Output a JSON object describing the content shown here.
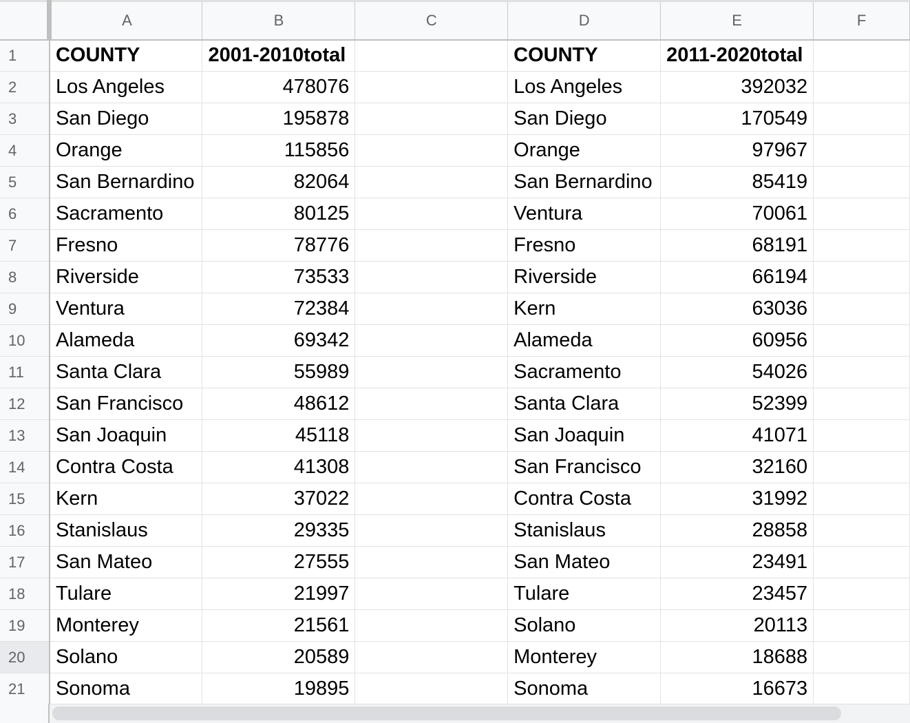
{
  "columns": [
    "A",
    "B",
    "C",
    "D",
    "E",
    "F"
  ],
  "row_numbers": [
    "1",
    "2",
    "3",
    "4",
    "5",
    "6",
    "7",
    "8",
    "9",
    "10",
    "11",
    "12",
    "13",
    "14",
    "15",
    "16",
    "17",
    "18",
    "19",
    "20",
    "21"
  ],
  "selected_row": "20",
  "rows": [
    [
      "COUNTY",
      "2001-2010total",
      "",
      "COUNTY",
      "2011-2020total",
      ""
    ],
    [
      "Los Angeles",
      "478076",
      "",
      "Los Angeles",
      "392032",
      ""
    ],
    [
      "San Diego",
      "195878",
      "",
      "San Diego",
      "170549",
      ""
    ],
    [
      "Orange",
      "115856",
      "",
      "Orange",
      "97967",
      ""
    ],
    [
      "San Bernardino",
      "82064",
      "",
      "San Bernardino",
      "85419",
      ""
    ],
    [
      "Sacramento",
      "80125",
      "",
      "Ventura",
      "70061",
      ""
    ],
    [
      "Fresno",
      "78776",
      "",
      "Fresno",
      "68191",
      ""
    ],
    [
      "Riverside",
      "73533",
      "",
      "Riverside",
      "66194",
      ""
    ],
    [
      "Ventura",
      "72384",
      "",
      "Kern",
      "63036",
      ""
    ],
    [
      "Alameda",
      "69342",
      "",
      "Alameda",
      "60956",
      ""
    ],
    [
      "Santa Clara",
      "55989",
      "",
      "Sacramento",
      "54026",
      ""
    ],
    [
      "San Francisco",
      "48612",
      "",
      "Santa Clara",
      "52399",
      ""
    ],
    [
      "San Joaquin",
      "45118",
      "",
      "San Joaquin",
      "41071",
      ""
    ],
    [
      "Contra Costa",
      "41308",
      "",
      "San Francisco",
      "32160",
      ""
    ],
    [
      "Kern",
      "37022",
      "",
      "Contra Costa",
      "31992",
      ""
    ],
    [
      "Stanislaus",
      "29335",
      "",
      "Stanislaus",
      "28858",
      ""
    ],
    [
      "San Mateo",
      "27555",
      "",
      "San Mateo",
      "23491",
      ""
    ],
    [
      "Tulare",
      "21997",
      "",
      "Tulare",
      "23457",
      ""
    ],
    [
      "Monterey",
      "21561",
      "",
      "Solano",
      "20113",
      ""
    ],
    [
      "Solano",
      "20589",
      "",
      "Monterey",
      "18688",
      ""
    ],
    [
      "Sonoma",
      "19895",
      "",
      "Sonoma",
      "16673",
      ""
    ]
  ]
}
